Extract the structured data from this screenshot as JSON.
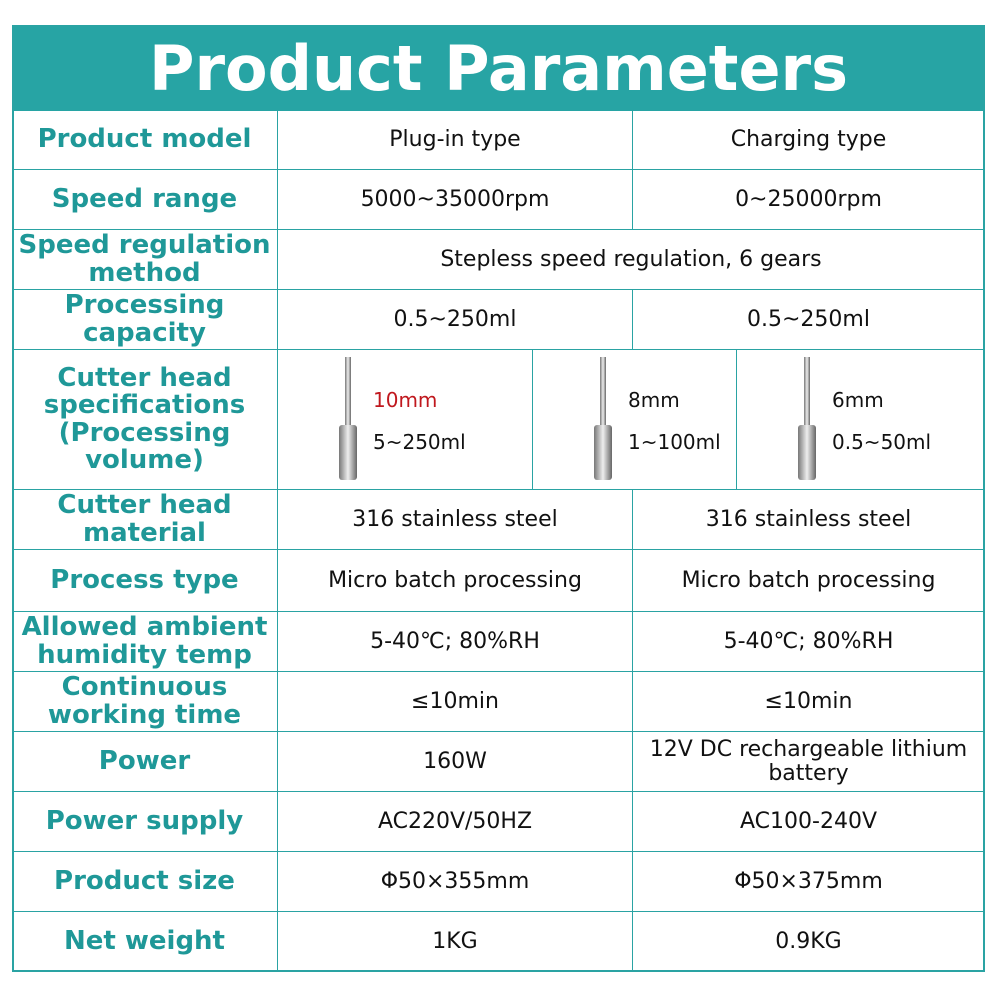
{
  "header": {
    "title": "Product Parameters"
  },
  "table": {
    "rows_top": [
      [
        "Product model",
        "Plug-in type",
        "Charging type"
      ],
      [
        "Speed range",
        "5000~35000rpm",
        "0~25000rpm"
      ],
      [
        "Speed regulation method",
        "Stepless speed regulation, 6 gears"
      ],
      [
        "Processing capacity",
        "0.5~250ml",
        "0.5~250ml"
      ]
    ],
    "cutter_heads": {
      "label": "Cutter head specifications (Processing volume)",
      "items": [
        {
          "size": "10mm",
          "volume": "5~250ml"
        },
        {
          "size": "8mm",
          "volume": "1~100ml"
        },
        {
          "size": "6mm",
          "volume": "0.5~50ml"
        }
      ]
    },
    "rows_bottom": [
      [
        "Cutter head material",
        "316 stainless steel",
        "316 stainless steel"
      ],
      [
        "Process type",
        "Micro batch processing",
        "Micro batch processing"
      ],
      [
        "Allowed ambient humidity temp",
        "5-40℃; 80%RH",
        "5-40℃; 80%RH"
      ],
      [
        "Continuous working time",
        "≤10min",
        "≤10min"
      ],
      [
        "Power",
        "160W",
        "12V DC rechargeable lithium battery"
      ],
      [
        "Power supply",
        "AC220V/50HZ",
        "AC100-240V"
      ],
      [
        "Product size",
        "Φ50×355mm",
        "Φ50×375mm"
      ],
      [
        "Net weight",
        "1KG",
        "0.9KG"
      ]
    ]
  }
}
